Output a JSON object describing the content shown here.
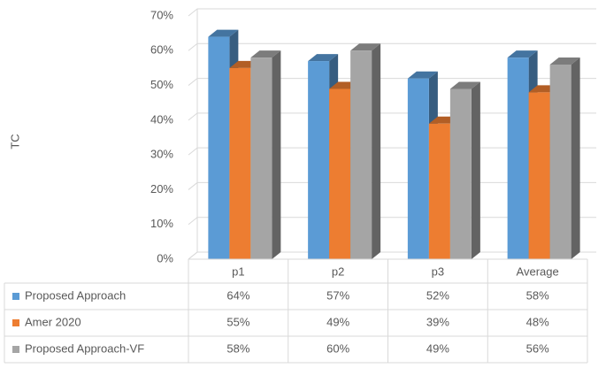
{
  "chart_data": {
    "type": "bar3d",
    "y_label": "TC",
    "categories": [
      "p1",
      "p2",
      "p3",
      "Average"
    ],
    "series": [
      {
        "name": "Proposed Approach",
        "color": "#5b9bd5",
        "values": [
          64,
          57,
          52,
          58
        ],
        "value_labels": [
          "64%",
          "57%",
          "52%",
          "58%"
        ]
      },
      {
        "name": "Amer 2020",
        "color": "#ed7d31",
        "values": [
          55,
          49,
          39,
          48
        ],
        "value_labels": [
          "55%",
          "49%",
          "39%",
          "48%"
        ]
      },
      {
        "name": "Proposed Approach-VF",
        "color": "#a5a5a5",
        "values": [
          58,
          60,
          49,
          56
        ],
        "value_labels": [
          "58%",
          "60%",
          "49%",
          "56%"
        ]
      }
    ],
    "ylim": [
      0,
      70
    ],
    "yticks": [
      {
        "value": 0,
        "label": "0%"
      },
      {
        "value": 10,
        "label": "10%"
      },
      {
        "value": 20,
        "label": "20%"
      },
      {
        "value": 30,
        "label": "30%"
      },
      {
        "value": 40,
        "label": "40%"
      },
      {
        "value": 50,
        "label": "50%"
      },
      {
        "value": 60,
        "label": "60%"
      },
      {
        "value": 70,
        "label": "70%"
      }
    ],
    "grid": true
  }
}
